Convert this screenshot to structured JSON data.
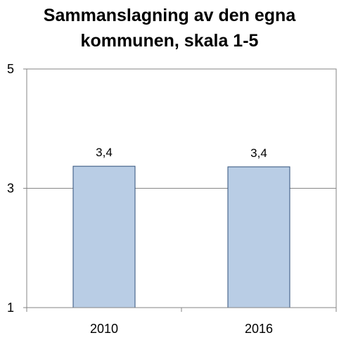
{
  "chart_data": {
    "type": "bar",
    "title_lines": [
      "Sammanslagning av den egna",
      "kommunen, skala 1-5"
    ],
    "categories": [
      "2010",
      "2016"
    ],
    "values": [
      3.37,
      3.36
    ],
    "data_labels": [
      "3,4",
      "3,4"
    ],
    "ylim": [
      1,
      5
    ],
    "y_ticks": [
      1,
      3,
      5
    ],
    "y_tick_labels": [
      "1",
      "3",
      "5"
    ],
    "xlabel": "",
    "ylabel": "",
    "grid": true,
    "legend": "none",
    "colors": {
      "bar_fill": "#b9cde5",
      "bar_stroke": "#2f4f7a",
      "axis": "#868686",
      "grid": "#868686"
    }
  }
}
